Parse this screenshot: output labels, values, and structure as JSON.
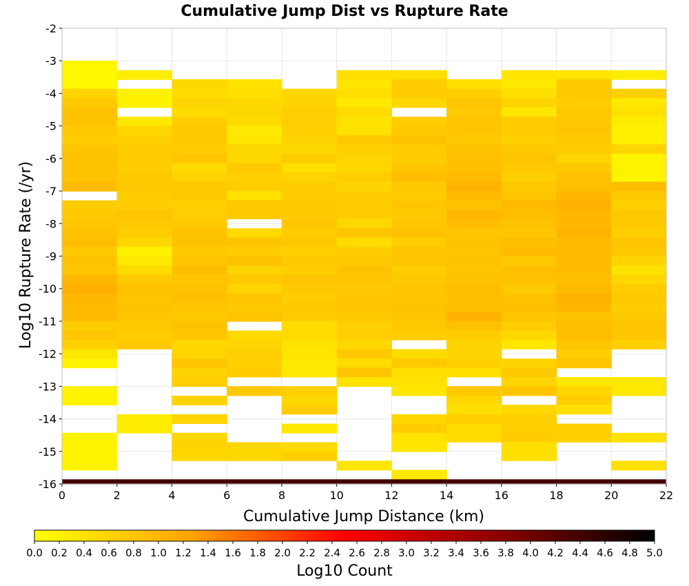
{
  "chart_data": {
    "type": "heatmap",
    "title": "Cumulative Jump Dist vs Rupture Rate",
    "xlabel": "Cumulative Jump Distance (km)",
    "ylabel": "Log10 Rupture Rate (/yr)",
    "colorbar_label": "Log10 Count",
    "xlim": [
      0,
      22
    ],
    "ylim": [
      -16,
      -2
    ],
    "x_ticks": [
      "0",
      "2",
      "4",
      "6",
      "8",
      "10",
      "12",
      "14",
      "16",
      "18",
      "20",
      "22"
    ],
    "y_ticks": [
      "-2",
      "-3",
      "-4",
      "-5",
      "-6",
      "-7",
      "-8",
      "-9",
      "-10",
      "-11",
      "-12",
      "-13",
      "-14",
      "-15",
      "-16"
    ],
    "colorbar_ticks": [
      "0.0",
      "0.2",
      "0.4",
      "0.6",
      "0.8",
      "1.0",
      "1.2",
      "1.4",
      "1.6",
      "1.8",
      "2.0",
      "2.2",
      "2.4",
      "2.6",
      "2.8",
      "3.0",
      "3.2",
      "3.4",
      "3.6",
      "3.8",
      "4.0",
      "4.2",
      "4.4",
      "4.6",
      "4.8",
      "5.0"
    ],
    "colorbar_range": [
      0,
      5
    ],
    "colormap": [
      "#ffff00",
      "#ffa500",
      "#ff0000",
      "#8b0000",
      "#000000"
    ],
    "grid": true,
    "x_bin_width": 2,
    "y_bin_height": 0.285714,
    "x_bins": [
      1,
      3,
      5,
      7,
      9,
      11,
      13,
      15,
      17,
      19,
      21
    ],
    "y_bins": [
      -3.14,
      -3.43,
      -3.71,
      -4.0,
      -4.29,
      -4.57,
      -4.86,
      -5.14,
      -5.43,
      -5.71,
      -6.0,
      -6.29,
      -6.57,
      -6.86,
      -7.14,
      -7.43,
      -7.71,
      -8.0,
      -8.29,
      -8.57,
      -8.86,
      -9.14,
      -9.43,
      -9.71,
      -10.0,
      -10.29,
      -10.57,
      -10.86,
      -11.14,
      -11.43,
      -11.71,
      -12.0,
      -12.29,
      -12.57,
      -12.86,
      -13.14,
      -13.43,
      -13.71,
      -14.0,
      -14.29,
      -14.57,
      -14.86,
      -15.14,
      -15.43,
      -15.71,
      -16.0
    ],
    "z_values": [
      [
        0.1,
        null,
        null,
        null,
        null,
        null,
        null,
        null,
        null,
        null,
        null
      ],
      [
        0.1,
        0.25,
        null,
        null,
        null,
        0.45,
        0.45,
        null,
        0.35,
        0.35,
        0.25
      ],
      [
        0.1,
        null,
        0.55,
        0.4,
        null,
        0.35,
        0.7,
        0.45,
        0.3,
        0.75,
        null
      ],
      [
        0.6,
        0.2,
        0.5,
        0.45,
        0.55,
        0.45,
        0.7,
        0.65,
        0.45,
        0.75,
        0.65
      ],
      [
        0.75,
        0.2,
        0.6,
        0.55,
        0.6,
        0.3,
        0.55,
        0.8,
        0.6,
        0.7,
        0.3
      ],
      [
        0.85,
        null,
        0.5,
        0.55,
        0.65,
        0.5,
        null,
        0.75,
        0.35,
        0.75,
        0.4
      ],
      [
        0.85,
        0.3,
        0.7,
        0.5,
        0.7,
        0.4,
        0.7,
        0.8,
        0.7,
        0.75,
        0.25
      ],
      [
        0.75,
        0.55,
        0.75,
        0.3,
        0.65,
        0.4,
        0.75,
        0.8,
        0.7,
        0.8,
        0.2
      ],
      [
        0.7,
        0.65,
        0.75,
        0.35,
        0.6,
        0.75,
        0.85,
        0.75,
        0.65,
        0.75,
        0.2
      ],
      [
        0.8,
        0.7,
        0.7,
        0.55,
        0.55,
        0.65,
        0.7,
        0.85,
        0.75,
        0.7,
        0.6
      ],
      [
        0.85,
        0.7,
        0.8,
        0.55,
        0.7,
        0.6,
        0.7,
        0.9,
        0.8,
        0.6,
        0.15
      ],
      [
        0.85,
        0.7,
        0.5,
        0.75,
        0.45,
        0.55,
        0.8,
        0.9,
        0.75,
        0.75,
        0.15
      ],
      [
        0.85,
        0.75,
        0.6,
        0.65,
        0.6,
        0.7,
        0.9,
        0.95,
        0.65,
        0.85,
        0.15
      ],
      [
        0.95,
        0.75,
        0.75,
        0.7,
        0.7,
        0.6,
        0.75,
        1.05,
        0.75,
        0.9,
        0.9
      ],
      [
        null,
        0.7,
        0.75,
        0.4,
        0.7,
        0.7,
        0.7,
        0.95,
        0.8,
        1.0,
        0.75
      ],
      [
        0.7,
        0.7,
        0.65,
        0.75,
        0.75,
        0.7,
        0.8,
        0.85,
        0.95,
        1.05,
        0.65
      ],
      [
        0.75,
        0.8,
        0.7,
        0.75,
        0.75,
        0.7,
        0.75,
        1.0,
        0.9,
        1.0,
        0.75
      ],
      [
        0.8,
        0.75,
        0.75,
        null,
        0.8,
        0.55,
        0.8,
        0.9,
        0.85,
        1.0,
        0.75
      ],
      [
        0.85,
        0.7,
        0.85,
        0.5,
        0.7,
        0.8,
        0.85,
        0.8,
        0.8,
        1.05,
        0.65
      ],
      [
        0.9,
        0.55,
        0.85,
        0.8,
        0.75,
        0.5,
        0.7,
        0.85,
        0.9,
        0.95,
        0.8
      ],
      [
        0.75,
        0.2,
        0.75,
        0.7,
        0.65,
        0.7,
        0.8,
        0.8,
        0.95,
        0.95,
        0.75
      ],
      [
        0.85,
        0.3,
        0.8,
        0.85,
        0.75,
        0.75,
        0.8,
        0.85,
        0.75,
        0.95,
        0.6
      ],
      [
        0.8,
        0.5,
        0.9,
        0.6,
        0.7,
        0.85,
        0.7,
        0.8,
        0.9,
        0.95,
        0.4
      ],
      [
        1.0,
        0.75,
        0.8,
        0.75,
        0.8,
        0.8,
        0.75,
        0.85,
        0.85,
        0.9,
        0.55
      ],
      [
        1.1,
        0.85,
        0.85,
        0.6,
        0.75,
        0.75,
        0.8,
        0.9,
        0.75,
        0.95,
        0.7
      ],
      [
        1.0,
        0.8,
        0.9,
        0.8,
        0.7,
        0.8,
        0.8,
        0.9,
        0.85,
        1.05,
        0.75
      ],
      [
        0.95,
        0.85,
        0.8,
        0.75,
        0.75,
        0.8,
        0.85,
        0.9,
        0.9,
        1.0,
        0.7
      ],
      [
        0.95,
        0.8,
        0.75,
        0.8,
        0.7,
        0.75,
        0.8,
        1.05,
        0.8,
        0.85,
        0.75
      ],
      [
        0.7,
        0.75,
        0.85,
        null,
        0.5,
        0.65,
        0.75,
        0.85,
        0.7,
        0.9,
        0.8
      ],
      [
        0.8,
        0.7,
        0.8,
        0.5,
        0.5,
        0.7,
        0.7,
        0.7,
        0.55,
        0.9,
        0.8
      ],
      [
        0.65,
        0.75,
        0.55,
        0.6,
        0.4,
        0.55,
        null,
        0.6,
        0.35,
        0.8,
        0.65
      ],
      [
        0.35,
        null,
        0.6,
        0.7,
        0.35,
        0.75,
        0.5,
        0.6,
        null,
        0.7,
        null
      ],
      [
        0.15,
        null,
        0.8,
        0.65,
        0.3,
        0.5,
        0.75,
        0.65,
        0.6,
        0.8,
        null
      ],
      [
        null,
        null,
        0.6,
        0.7,
        0.3,
        0.8,
        0.45,
        0.45,
        0.75,
        null,
        null
      ],
      [
        null,
        null,
        0.7,
        null,
        null,
        0.4,
        0.4,
        null,
        0.6,
        0.3,
        0.3
      ],
      [
        0.15,
        null,
        null,
        0.75,
        0.65,
        null,
        0.35,
        0.75,
        0.8,
        0.55,
        0.3
      ],
      [
        0.15,
        null,
        0.6,
        null,
        0.55,
        null,
        null,
        0.55,
        null,
        0.7,
        null
      ],
      [
        null,
        null,
        null,
        null,
        0.7,
        null,
        null,
        0.45,
        0.55,
        0.45,
        null
      ],
      [
        null,
        0.25,
        0.6,
        null,
        null,
        null,
        0.55,
        0.65,
        0.65,
        null,
        null
      ],
      [
        null,
        0.25,
        null,
        null,
        0.3,
        null,
        0.7,
        0.5,
        0.65,
        0.65,
        null
      ],
      [
        0.15,
        null,
        0.55,
        null,
        null,
        null,
        0.4,
        0.5,
        0.7,
        0.65,
        0.4
      ],
      [
        0.15,
        null,
        0.6,
        0.55,
        0.5,
        null,
        0.35,
        null,
        0.45,
        null,
        null
      ],
      [
        0.15,
        null,
        0.55,
        0.55,
        0.65,
        null,
        null,
        null,
        0.45,
        null,
        null
      ],
      [
        0.15,
        null,
        null,
        null,
        null,
        0.35,
        null,
        null,
        null,
        null,
        0.4
      ],
      [
        null,
        null,
        null,
        null,
        null,
        null,
        0.3,
        null,
        null,
        null,
        null
      ],
      [
        4.4,
        4.4,
        4.4,
        4.4,
        4.4,
        4.4,
        4.4,
        4.4,
        4.4,
        4.4,
        4.4
      ]
    ]
  }
}
